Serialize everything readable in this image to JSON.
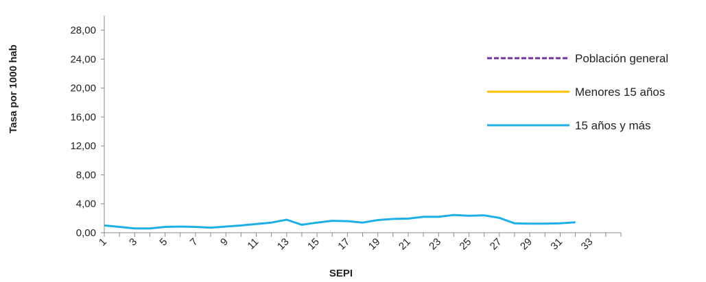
{
  "chart_data": {
    "type": "line",
    "y_label": "Tasa por 1000 hab",
    "x_label": "SEPI",
    "categories": [
      "1",
      null,
      "3",
      null,
      "5",
      null,
      "7",
      null,
      "9",
      null,
      "11",
      null,
      "13",
      null,
      "15",
      null,
      "17",
      null,
      "19",
      null,
      "21",
      null,
      "23",
      null,
      "25",
      null,
      "27",
      null,
      "29",
      null,
      "31",
      null,
      "33",
      null
    ],
    "series": [
      {
        "name": "Población general",
        "color": "#7030a0",
        "dashed": true,
        "values": [
          null,
          null,
          null,
          null,
          null,
          null,
          null,
          null,
          null,
          null,
          null,
          null,
          null,
          null,
          null,
          null,
          null,
          null,
          null,
          null,
          null,
          null,
          null,
          null,
          null,
          null,
          null,
          null,
          null,
          null,
          null,
          null,
          null,
          null
        ]
      },
      {
        "name": "Menores 15 años",
        "color": "#ffc000",
        "dashed": false,
        "values": [
          null,
          null,
          null,
          null,
          null,
          null,
          null,
          null,
          null,
          null,
          null,
          null,
          null,
          null,
          null,
          null,
          null,
          null,
          null,
          null,
          null,
          null,
          null,
          null,
          null,
          null,
          null,
          null,
          null,
          null,
          null,
          null,
          null,
          null
        ]
      },
      {
        "name": "15 años y más",
        "color": "#1cb0e8",
        "dashed": false,
        "values": [
          1.0,
          0.8,
          0.6,
          0.6,
          0.8,
          0.85,
          0.8,
          0.7,
          0.85,
          1.0,
          1.2,
          1.4,
          1.8,
          1.1,
          1.4,
          1.65,
          1.6,
          1.4,
          1.75,
          1.9,
          1.95,
          2.2,
          2.2,
          2.45,
          2.35,
          2.4,
          2.05,
          1.3,
          1.25,
          1.25,
          1.3,
          1.45,
          null,
          null
        ]
      }
    ],
    "ylim": [
      0,
      30
    ],
    "yticks": [
      {
        "value": 0,
        "label": "0,00"
      },
      {
        "value": 4,
        "label": "4,00"
      },
      {
        "value": 8,
        "label": "8,00"
      },
      {
        "value": 12,
        "label": "12,00"
      },
      {
        "value": 16,
        "label": "16,00"
      },
      {
        "value": 20,
        "label": "20,00"
      },
      {
        "value": 24,
        "label": "24,00"
      },
      {
        "value": 28,
        "label": "28,00"
      }
    ],
    "legend": "right"
  }
}
